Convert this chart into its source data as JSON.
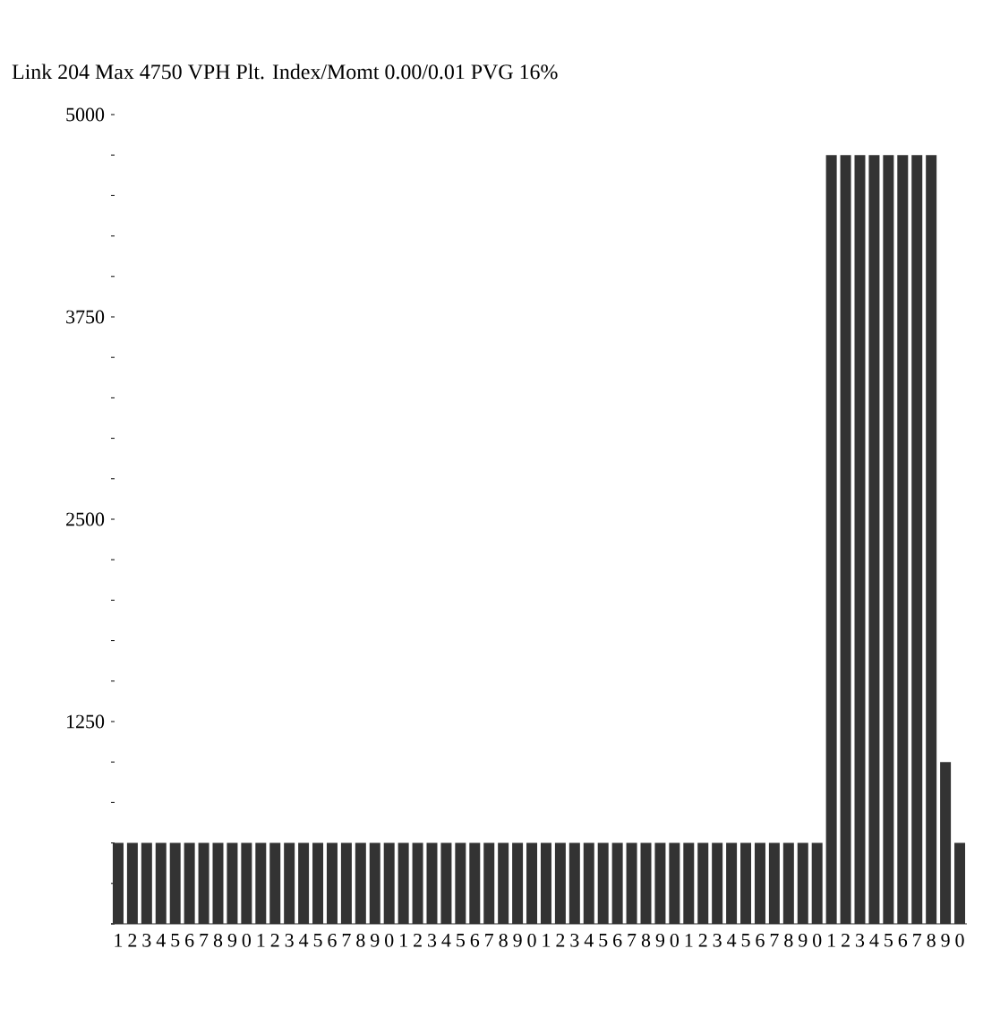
{
  "chart_data": {
    "type": "bar",
    "title": "Link  204  Max  4750  VPH Plt. Index/Momt  0.00/0.01  PVG 16%",
    "categories": [
      "1",
      "2",
      "3",
      "4",
      "5",
      "6",
      "7",
      "8",
      "9",
      "0",
      "1",
      "2",
      "3",
      "4",
      "5",
      "6",
      "7",
      "8",
      "9",
      "0",
      "1",
      "2",
      "3",
      "4",
      "5",
      "6",
      "7",
      "8",
      "9",
      "0",
      "1",
      "2",
      "3",
      "4",
      "5",
      "6",
      "7",
      "8",
      "9",
      "0",
      "1",
      "2",
      "3",
      "4",
      "5",
      "6",
      "7",
      "8",
      "9",
      "0",
      "1",
      "2",
      "3",
      "4",
      "5",
      "6",
      "7",
      "8",
      "9",
      "0"
    ],
    "values": [
      500,
      500,
      500,
      500,
      500,
      500,
      500,
      500,
      500,
      500,
      500,
      500,
      500,
      500,
      500,
      500,
      500,
      500,
      500,
      500,
      500,
      500,
      500,
      500,
      500,
      500,
      500,
      500,
      500,
      500,
      500,
      500,
      500,
      500,
      500,
      500,
      500,
      500,
      500,
      500,
      500,
      500,
      500,
      500,
      500,
      500,
      500,
      500,
      500,
      500,
      4750,
      4750,
      4750,
      4750,
      4750,
      4750,
      4750,
      4750,
      1000,
      500
    ],
    "color": "#333333",
    "ylim": [
      0,
      5000
    ],
    "yticks": [
      {
        "value": 0,
        "label": null
      },
      {
        "value": 250,
        "label": null
      },
      {
        "value": 500,
        "label": null
      },
      {
        "value": 750,
        "label": null
      },
      {
        "value": 1000,
        "label": null
      },
      1250,
      {
        "value": 1500,
        "label": null
      },
      {
        "value": 1750,
        "label": null
      },
      {
        "value": 2000,
        "label": null
      },
      {
        "value": 2250,
        "label": null
      },
      2500,
      {
        "value": 2750,
        "label": null
      },
      {
        "value": 3000,
        "label": null
      },
      {
        "value": 3250,
        "label": null
      },
      {
        "value": 3500,
        "label": null
      },
      3750,
      {
        "value": 4000,
        "label": null
      },
      {
        "value": 4250,
        "label": null
      },
      {
        "value": 4500,
        "label": null
      },
      {
        "value": 4750,
        "label": null
      },
      5000
    ]
  }
}
